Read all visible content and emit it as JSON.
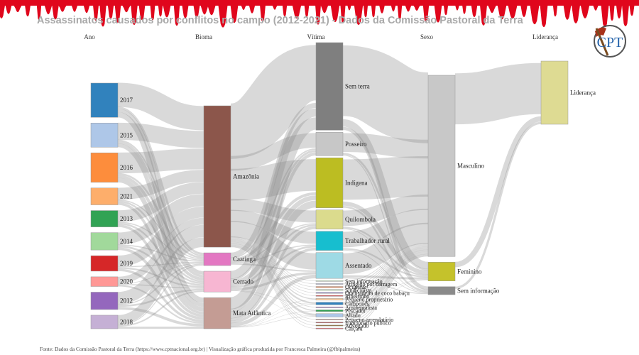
{
  "title": "Assassinatos causados por conflitos no campo (2012-2021) - Dados da Comissão Pastoral da Terra",
  "footer": "Fonte: Dados da Comissão Pastoral da Terra (https://www.cptnacional.org.br) | Visualização gráfica produzida por Francesca Palmeira (@fblpalmeira)",
  "logo_text": "CPT",
  "colors": {
    "drip": "#e0061c",
    "link": "#c8c8c8",
    "title": "#a9a9a9"
  },
  "chart_data": {
    "type": "sankey",
    "columns": [
      {
        "header": "Ano",
        "nodes": [
          {
            "label": "2017",
            "value": 71,
            "color": "#3182bd"
          },
          {
            "label": "2015",
            "value": 50,
            "color": "#aec7e8"
          },
          {
            "label": "2016",
            "value": 61,
            "color": "#fd8d3c"
          },
          {
            "label": "2021",
            "value": 35,
            "color": "#fdae6b"
          },
          {
            "label": "2013",
            "value": 34,
            "color": "#31a354"
          },
          {
            "label": "2014",
            "value": 36,
            "color": "#a1d99b"
          },
          {
            "label": "2019",
            "value": 32,
            "color": "#d62728"
          },
          {
            "label": "2020",
            "value": 20,
            "color": "#ff9896"
          },
          {
            "label": "2012",
            "value": 36,
            "color": "#9467bd"
          },
          {
            "label": "2018",
            "value": 28,
            "color": "#c5b0d5"
          }
        ]
      },
      {
        "header": "Bioma",
        "nodes": [
          {
            "label": "Amazônia",
            "value": 300,
            "color": "#8c564b"
          },
          {
            "label": "Caatinga",
            "value": 27,
            "color": "#e377c2"
          },
          {
            "label": "Cerrado",
            "value": 44,
            "color": "#f7b6d2"
          },
          {
            "label": "Mata Atlântica",
            "value": 66,
            "color": "#c49c94"
          }
        ]
      },
      {
        "header": "Vítima",
        "nodes": [
          {
            "label": "Sem terra",
            "value": 105,
            "color": "#7f7f7f"
          },
          {
            "label": "Posseiro",
            "value": 28,
            "color": "#c7c7c7"
          },
          {
            "label": "Indígena",
            "value": 60,
            "color": "#bcbd22"
          },
          {
            "label": "Quilombola",
            "value": 23,
            "color": "#dbdb8d"
          },
          {
            "label": "Trabalhador rural",
            "value": 23,
            "color": "#17becf"
          },
          {
            "label": "Assentado",
            "value": 31,
            "color": "#9edae5"
          },
          {
            "label": "Sem informação",
            "value": 1,
            "color": "#c7e9c0"
          },
          {
            "label": "Atingido por barragem",
            "value": 1,
            "color": "#bcbddc"
          },
          {
            "label": "Ocupante",
            "value": 1,
            "color": "#e6550d"
          },
          {
            "label": "Sindicalista",
            "value": 1,
            "color": "#a1d99b"
          },
          {
            "label": "Quebradeira de coco babaçu",
            "value": 1,
            "color": "#756bb1"
          },
          {
            "label": "Ribeirinho",
            "value": 1,
            "color": "#d62728"
          },
          {
            "label": "Pequeno proprietário",
            "value": 2,
            "color": "#fdd0a2"
          },
          {
            "label": "Camponês",
            "value": 3,
            "color": "#3182bd"
          },
          {
            "label": "Ambientalista",
            "value": 1,
            "color": "#9467bd"
          },
          {
            "label": "Pescador",
            "value": 2,
            "color": "#31a354"
          },
          {
            "label": "Aliado",
            "value": 4,
            "color": "#aec7e8"
          },
          {
            "label": "Pequeno arrendatário",
            "value": 1,
            "color": "#c49c94"
          },
          {
            "label": "Funcionário público",
            "value": 1,
            "color": "#ad494a"
          },
          {
            "label": "Advogado",
            "value": 1,
            "color": "#8c6d31"
          },
          {
            "label": "Caiçara",
            "value": 1,
            "color": "#d6616b"
          }
        ]
      },
      {
        "header": "Sexo",
        "nodes": [
          {
            "label": "Masculino",
            "value": 385,
            "color": "#c8c8c8"
          },
          {
            "label": "Feminino",
            "value": 40,
            "color": "#c5c22b"
          },
          {
            "label": "Sem informação",
            "value": 17,
            "color": "#8a8a8a"
          }
        ]
      },
      {
        "header": "Liderança",
        "nodes": [
          {
            "label": "Liderança",
            "value": 100,
            "color": "#dedb93"
          }
        ]
      }
    ]
  }
}
